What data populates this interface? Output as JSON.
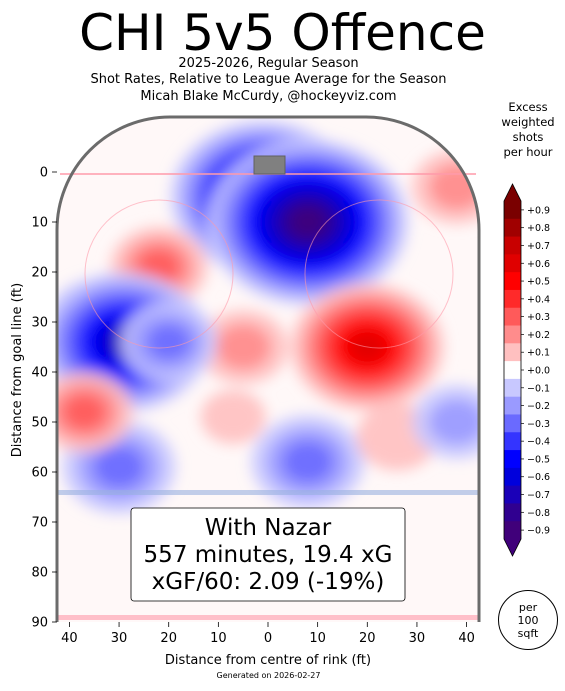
{
  "header": {
    "title": "CHI 5v5 Offence",
    "subtitle_1": "2025-2026, Regular Season",
    "subtitle_2": "Shot Rates, Relative to League Average for the Season",
    "subtitle_3": "Micah Blake McCurdy, @hockeyviz.com"
  },
  "info_box": {
    "line_1": "With Nazar",
    "line_2": "557 minutes, 19.4 xG",
    "line_3": "xGF/60: 2.09 (-19%)"
  },
  "colorbar": {
    "title_lines": [
      "Excess",
      "weighted",
      "shots",
      "per hour"
    ],
    "ticks": [
      "+0.9",
      "+0.8",
      "+0.7",
      "+0.6",
      "+0.5",
      "+0.4",
      "+0.3",
      "+0.2",
      "+0.1",
      "+0.0",
      "−0.1",
      "−0.2",
      "−0.3",
      "−0.4",
      "−0.5",
      "−0.6",
      "−0.7",
      "−0.8",
      "−0.9"
    ],
    "colors": [
      "#7a0000",
      "#a00000",
      "#c80000",
      "#e00000",
      "#ff0000",
      "#ff2a2a",
      "#ff5a5a",
      "#ff8c8c",
      "#ffc0c0",
      "#ffffff",
      "#c8c8ff",
      "#9a9aff",
      "#6a6aff",
      "#3434ff",
      "#0000ff",
      "#0000dc",
      "#1a00b8",
      "#300090",
      "#40007a"
    ]
  },
  "per_area": [
    "per",
    "100",
    "sqft"
  ],
  "footer": "Generated on 2026-02-27",
  "chart_data": {
    "type": "heatmap",
    "title": "CHI 5v5 Offence",
    "xlabel": "Distance from centre of rink (ft)",
    "ylabel": "Distance from goal line (ft)",
    "x_ticks": [
      "40",
      "30",
      "20",
      "10",
      "0",
      "10",
      "20",
      "30",
      "40"
    ],
    "y_ticks": [
      "0",
      "10",
      "20",
      "30",
      "40",
      "50",
      "60",
      "70",
      "80",
      "90"
    ],
    "xlim": [
      -42.5,
      42.5
    ],
    "ylim": [
      90,
      -11
    ],
    "zlim": [
      -0.9,
      0.9
    ],
    "hotspots": [
      {
        "x": -1,
        "y": 5,
        "value": -0.8
      },
      {
        "x": 8,
        "y": 10,
        "value": -0.9
      },
      {
        "x": 20,
        "y": 35,
        "value": 0.6
      },
      {
        "x": -22,
        "y": 19,
        "value": 0.25
      },
      {
        "x": 38,
        "y": 3,
        "value": 0.2
      },
      {
        "x": -34,
        "y": 30,
        "value": -0.3
      },
      {
        "x": -29,
        "y": 34,
        "value": -0.7
      },
      {
        "x": -7,
        "y": 49,
        "value": 0.05
      },
      {
        "x": 8,
        "y": 58,
        "value": -0.35
      },
      {
        "x": -30,
        "y": 59,
        "value": -0.35
      },
      {
        "x": -37,
        "y": 48,
        "value": 0.25
      },
      {
        "x": 26,
        "y": 53,
        "value": 0.15
      },
      {
        "x": -5,
        "y": 35,
        "value": 0.2
      },
      {
        "x": -20,
        "y": 34,
        "value": -0.25
      },
      {
        "x": 38,
        "y": 50,
        "value": -0.2
      }
    ]
  }
}
